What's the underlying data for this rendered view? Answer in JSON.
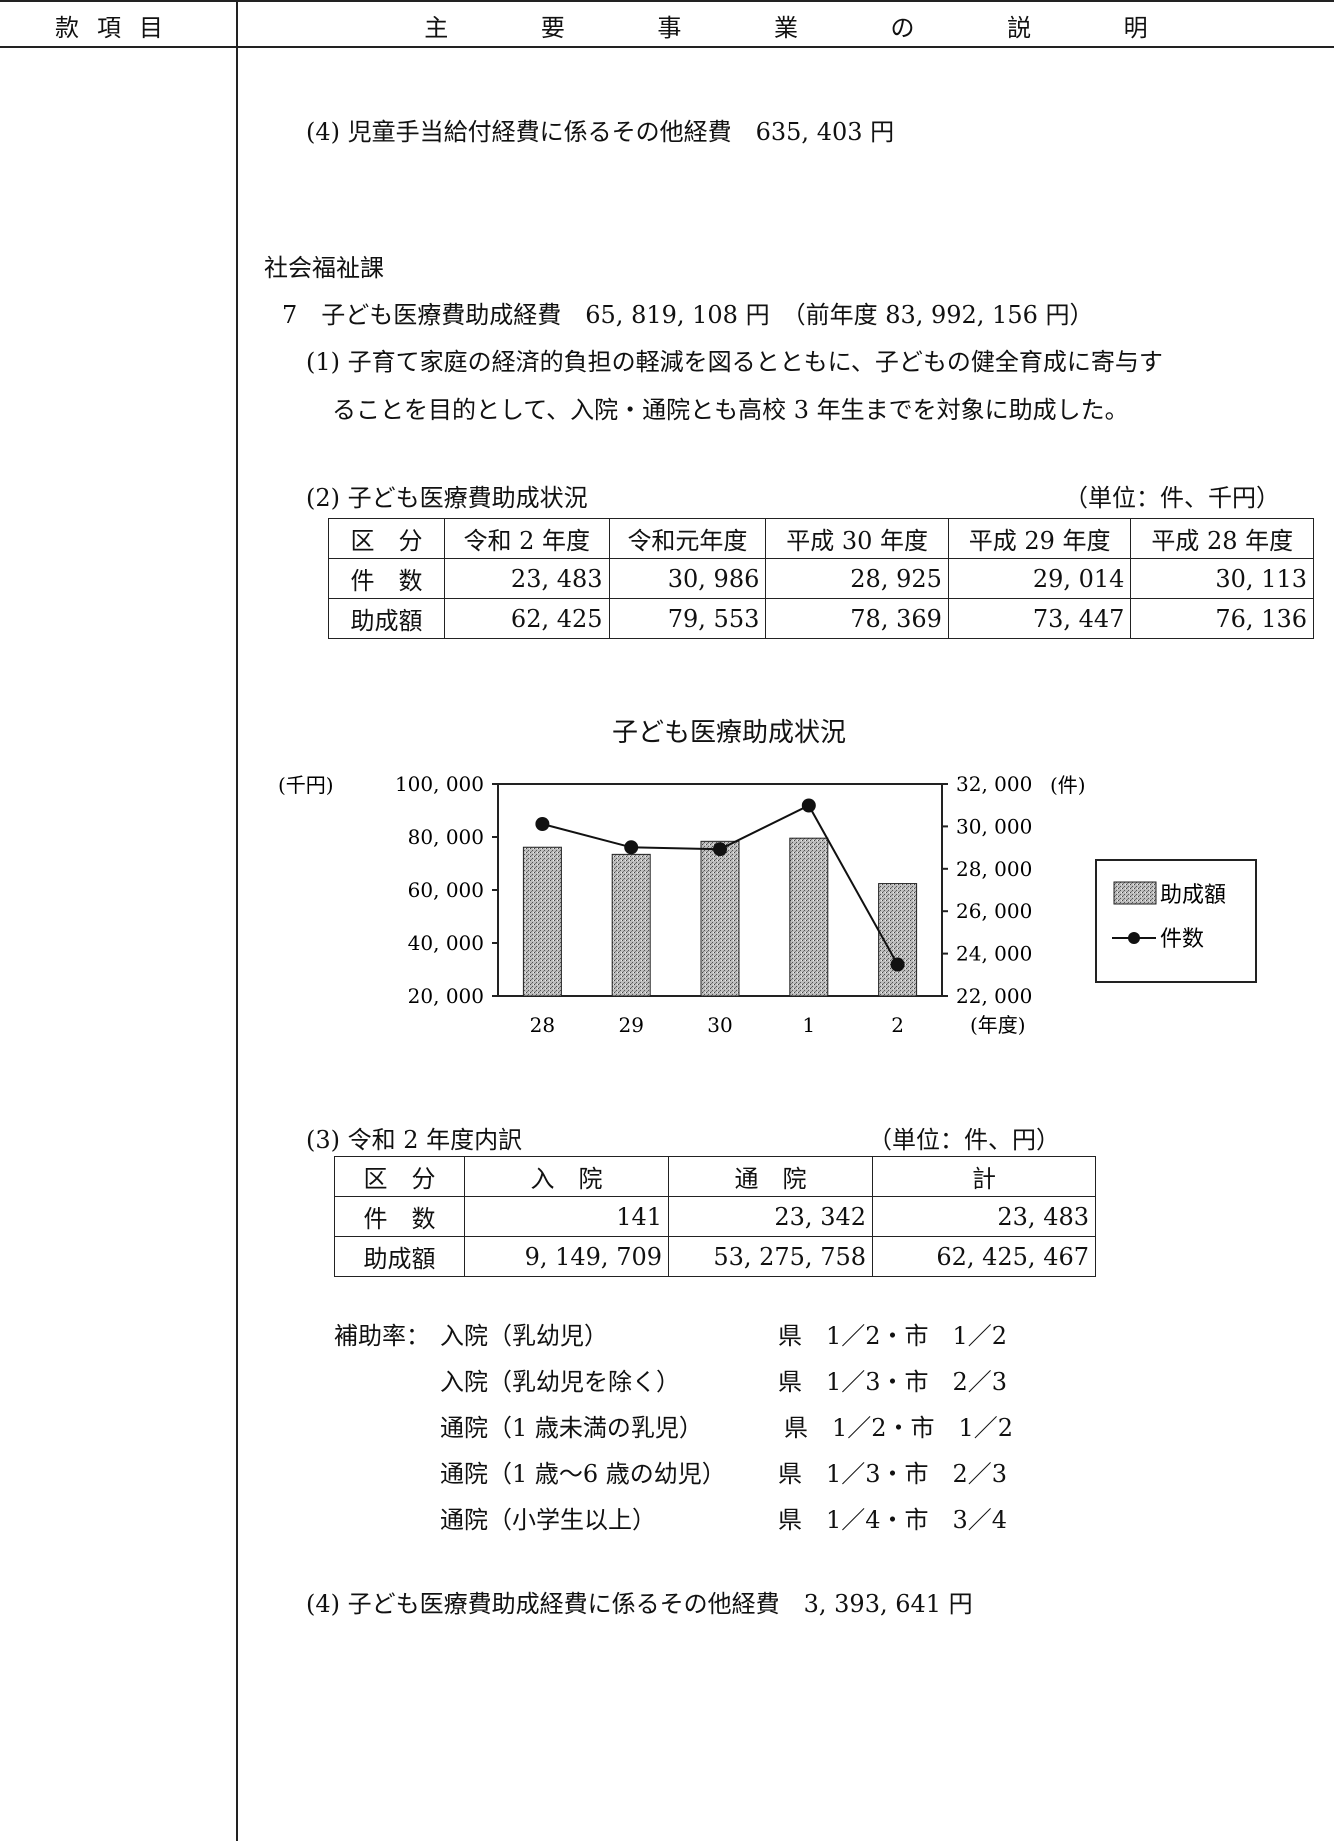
{
  "header": {
    "left": "款項目",
    "right_chars": [
      "主",
      "要",
      "事",
      "業",
      "の",
      "説",
      "明"
    ]
  },
  "item4_child": "(4) 児童手当給付経費に係るその他経費　635, 403 円",
  "dept": "社会福祉課",
  "item7": {
    "title": "7　子ども医療費助成経費　65, 819, 108 円　（前年度 83, 992, 156 円）",
    "sub1_line1": "(1) 子育て家庭の経済的負担の軽減を図るとともに、子どもの健全育成に寄与す",
    "sub1_line2": "ることを目的として、入院・通院とも高校 3 年生までを対象に助成した。",
    "sub2_title": "(2) 子ども医療費助成状況",
    "sub2_unit": "（単位：件、千円）",
    "table1": {
      "headers": [
        "区　分",
        "令和 2 年度",
        "令和元年度",
        "平成 30 年度",
        "平成 29 年度",
        "平成 28 年度"
      ],
      "rows": [
        {
          "label": "件　数",
          "values": [
            "23, 483",
            "30, 986",
            "28, 925",
            "29, 014",
            "30, 113"
          ]
        },
        {
          "label": "助成額",
          "values": [
            "62, 425",
            "79, 553",
            "78, 369",
            "73, 447",
            "76, 136"
          ]
        }
      ]
    },
    "sub3_title": "(3) 令和 2 年度内訳",
    "sub3_unit": "（単位：件、円）",
    "table2": {
      "headers": [
        "区　分",
        "入　院",
        "通　院",
        "計"
      ],
      "rows": [
        {
          "label": "件　数",
          "values": [
            "141",
            "23, 342",
            "23, 483"
          ]
        },
        {
          "label": "助成額",
          "values": [
            "9, 149, 709",
            "53, 275, 758",
            "62, 425, 467"
          ]
        }
      ]
    },
    "subsidy_label": "補助率：",
    "subsidy_rows": [
      {
        "cat": "入院（乳幼児）",
        "rate": "県　1／2・市　1／2"
      },
      {
        "cat": "入院（乳幼児を除く）",
        "rate": "県　1／3・市　2／3"
      },
      {
        "cat": "通院（1 歳未満の乳児）",
        "rate": "県　1／2・市　1／2"
      },
      {
        "cat": "通院（1 歳～6 歳の幼児）",
        "rate": "県　1／3・市　2／3"
      },
      {
        "cat": "通院（小学生以上）",
        "rate": "県　1／4・市　3／4"
      }
    ],
    "sub4": "(4) 子ども医療費助成経費に係るその他経費　3, 393, 641 円"
  },
  "chart_data": {
    "type": "bar",
    "title": "子ども医療助成状況",
    "categories": [
      "28",
      "29",
      "30",
      "1",
      "2"
    ],
    "x_unit_label": "(年度)",
    "left_axis": {
      "unit_label": "(千円)",
      "ticks": [
        "100, 000",
        "80, 000",
        "60, 000",
        "40, 000",
        "20, 000"
      ],
      "ylim": [
        20000,
        100000
      ]
    },
    "right_axis": {
      "unit_label": "(件)",
      "ticks": [
        "32, 000",
        "30, 000",
        "28, 000",
        "26, 000",
        "24, 000",
        "22, 000"
      ],
      "ylim": [
        22000,
        32000
      ]
    },
    "series": [
      {
        "name": "助成額",
        "kind": "bar",
        "axis": "left",
        "values": [
          76136,
          73447,
          78369,
          79553,
          62425
        ]
      },
      {
        "name": "件数",
        "kind": "line",
        "axis": "right",
        "values": [
          30113,
          29014,
          28925,
          30986,
          23483
        ]
      }
    ],
    "legend_position": "right"
  }
}
